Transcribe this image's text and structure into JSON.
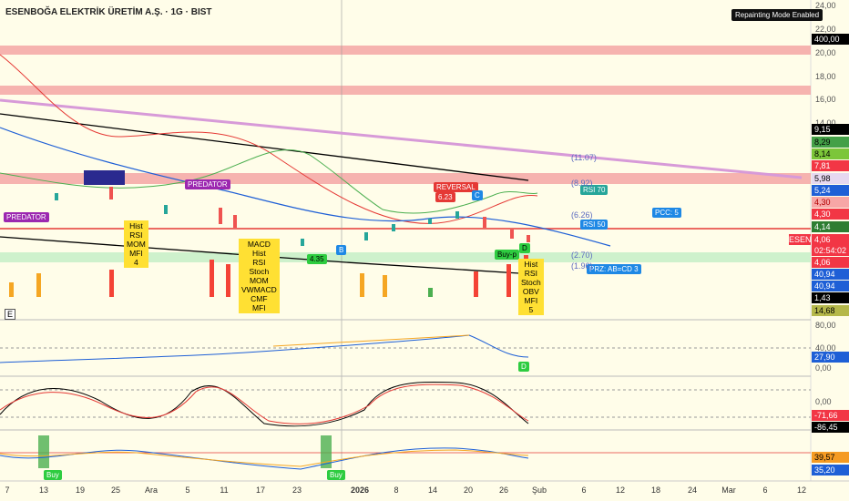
{
  "header": {
    "title": "ESENBOĞA ELEKTRİK ÜRETİM A.Ş. · 1G · BIST",
    "badge": "Repainting Mode Enabled",
    "pane_label": "E"
  },
  "price_axis": {
    "ticks": [
      "24,00",
      "22,00",
      "20,00",
      "18,00",
      "16,00",
      "14,00"
    ],
    "tags": [
      {
        "text": "400,00",
        "bg": "#000000",
        "fg": "#ffffff"
      },
      {
        "text": "9,15",
        "bg": "#000000",
        "fg": "#ffffff"
      },
      {
        "text": "8,29",
        "bg": "#43a047",
        "fg": "#000000"
      },
      {
        "text": "8,14",
        "bg": "#7cc63a",
        "fg": "#000000"
      },
      {
        "text": "7,81",
        "bg": "#f23645",
        "fg": "#ffffff"
      },
      {
        "text": "5,98",
        "bg": "#e6d8f0",
        "fg": "#000000"
      },
      {
        "text": "5,24",
        "bg": "#1e5fd6",
        "fg": "#ffffff"
      },
      {
        "text": "4,30",
        "bg": "#f7a6a6",
        "fg": "#b00000"
      },
      {
        "text": "4,30",
        "bg": "#f23645",
        "fg": "#ffffff"
      },
      {
        "text": "4,14",
        "bg": "#2e7d32",
        "fg": "#ffffff"
      },
      {
        "text": "4,06",
        "bg": "#f23645",
        "fg": "#ffffff"
      },
      {
        "text": "02:54:02",
        "bg": "#f23645",
        "fg": "#ffffff"
      },
      {
        "text": "4,06",
        "bg": "#f23645",
        "fg": "#ffffff"
      },
      {
        "text": "40,94",
        "bg": "#1e5fd6",
        "fg": "#ffffff"
      },
      {
        "text": "40,94",
        "bg": "#1e5fd6",
        "fg": "#ffffff"
      },
      {
        "text": "1,43",
        "bg": "#000000",
        "fg": "#ffffff"
      },
      {
        "text": "14,68",
        "bg": "#b5b84a",
        "fg": "#000000"
      }
    ],
    "symbol_tag": "ESEN"
  },
  "rsi_axis": {
    "ticks": [
      "80,00",
      "40,00",
      "0,00"
    ],
    "tags": [
      {
        "text": "27,90",
        "bg": "#1e5fd6",
        "fg": "#ffffff"
      }
    ]
  },
  "stoch_axis": {
    "ticks": [
      "0,00"
    ],
    "tags": [
      {
        "text": "-71,66",
        "bg": "#f23645",
        "fg": "#ffffff"
      },
      {
        "text": "-86,45",
        "bg": "#000000",
        "fg": "#ffffff"
      }
    ]
  },
  "macd_axis": {
    "tags": [
      {
        "text": "39,57",
        "bg": "#f59b23",
        "fg": "#000000"
      },
      {
        "text": "35,20",
        "bg": "#1e5fd6",
        "fg": "#ffffff"
      }
    ]
  },
  "time_axis": [
    "7",
    "13",
    "19",
    "25",
    "Ara",
    "5",
    "11",
    "17",
    "23",
    "2026",
    "8",
    "14",
    "20",
    "26",
    "Şub",
    "6",
    "12",
    "18",
    "24",
    "Mar",
    "6",
    "12"
  ],
  "annotations": [
    {
      "text": "PREDATOR",
      "bg": "#9c27b0",
      "fg": "#ffffff"
    },
    {
      "text": "PREDATOR",
      "bg": "#9c27b0",
      "fg": "#ffffff"
    },
    {
      "text": "REVERSAL",
      "bg": "#e53935",
      "fg": "#ffffff"
    },
    {
      "text": "6.23",
      "bg": "#e53935",
      "fg": "#ffffff"
    },
    {
      "text": "RSI 70",
      "bg": "#26a69a",
      "fg": "#ffffff"
    },
    {
      "text": "RSI 50",
      "bg": "#1e88e5",
      "fg": "#ffffff"
    },
    {
      "text": "PCC: 5",
      "bg": "#1e88e5",
      "fg": "#ffffff"
    },
    {
      "text": "PRZ: AB=CD 3",
      "bg": "#1e88e5",
      "fg": "#ffffff"
    },
    {
      "text": "4.35",
      "bg": "#2ecc40",
      "fg": "#000000"
    },
    {
      "text": "Buy-p",
      "bg": "#2ecc40",
      "fg": "#000000"
    },
    {
      "text": "B",
      "bg": "#1e88e5",
      "fg": "#ffffff"
    },
    {
      "text": "C",
      "bg": "#1e88e5",
      "fg": "#ffffff"
    },
    {
      "text": "D",
      "bg": "#2ecc40",
      "fg": "#000000"
    },
    {
      "text": "D",
      "bg": "#2ecc40",
      "fg": "#ffffff"
    },
    {
      "text": "Buy",
      "bg": "#2ecc40",
      "fg": "#ffffff"
    },
    {
      "text": "Buy",
      "bg": "#2ecc40",
      "fg": "#ffffff"
    }
  ],
  "fib_labels": [
    "(11.07)",
    "(8.92)",
    "(6.26)",
    "(2.70)",
    "(1.96)"
  ],
  "divergence_boxes": [
    {
      "lines": [
        "Hist",
        "RSI",
        "MOM",
        "MFI",
        "4"
      ]
    },
    {
      "lines": [
        "MACD",
        "Hist",
        "RSI",
        "Stoch",
        "MOM",
        "VWMACD",
        "CMF",
        "MFI"
      ]
    },
    {
      "lines": [
        "Hist",
        "RSI",
        "Stoch",
        "OBV",
        "MFI",
        "5"
      ]
    }
  ]
}
